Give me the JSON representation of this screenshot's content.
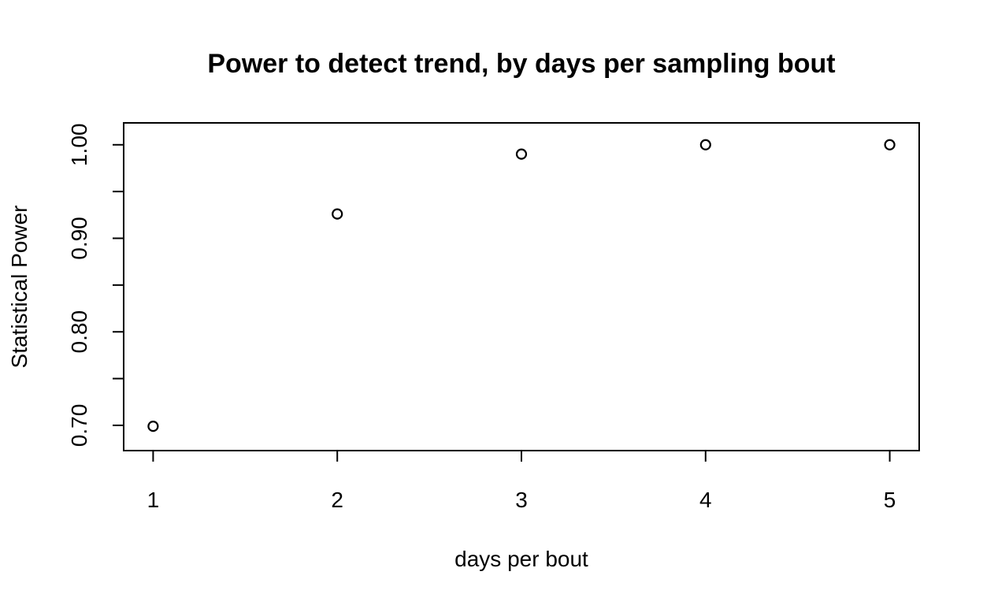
{
  "chart_data": {
    "type": "scatter",
    "title": "Power to detect trend, by days per sampling bout",
    "xlabel": "days per bout",
    "ylabel": "Statistical Power",
    "x": [
      1,
      2,
      3,
      4,
      5
    ],
    "y": [
      0.699,
      0.926,
      0.99,
      1.0,
      1.0
    ],
    "xlim": [
      0.84,
      5.16
    ],
    "ylim": [
      0.673,
      1.0234
    ],
    "x_ticks": [
      1,
      2,
      3,
      4,
      5
    ],
    "x_tick_labels": [
      "1",
      "2",
      "3",
      "4",
      "5"
    ],
    "y_ticks": [
      0.7,
      0.75,
      0.8,
      0.85,
      0.9,
      0.95,
      1.0
    ],
    "y_tick_labels": [
      "0.70",
      "",
      "0.80",
      "",
      "0.90",
      "",
      "1.00"
    ],
    "marker": "open-circle",
    "grid": false,
    "legend": "none",
    "colors": {
      "marker": "#000000",
      "axis": "#000000",
      "background": "#ffffff"
    }
  }
}
